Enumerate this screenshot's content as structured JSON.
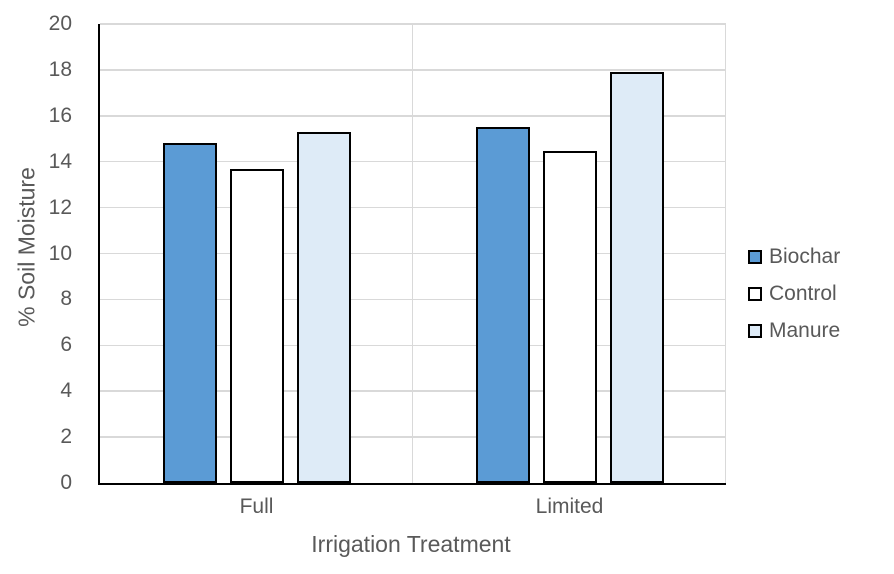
{
  "chart_data": {
    "type": "bar",
    "title": "",
    "categories": [
      "Full",
      "Limited"
    ],
    "series": [
      {
        "name": "Biochar",
        "color": "#5B9BD5",
        "values": [
          14.8,
          15.5
        ]
      },
      {
        "name": "Control",
        "color": "#FFFFFF",
        "values": [
          13.7,
          14.45
        ]
      },
      {
        "name": "Manure",
        "color": "#DEEBF7",
        "values": [
          15.3,
          17.9
        ]
      }
    ],
    "xlabel": "Irrigation Treatment",
    "ylabel": "% Soil Moisture",
    "ylim": [
      0,
      20
    ],
    "ytick_step": 2,
    "yticks": [
      "0",
      "2",
      "4",
      "6",
      "8",
      "10",
      "12",
      "14",
      "16",
      "18",
      "20"
    ],
    "grid": true,
    "legend_position": "right",
    "colors": {
      "gridline": "#D9D9D9",
      "axis_line": "#000000",
      "bar_border": "#000000",
      "text": "#595959"
    }
  }
}
